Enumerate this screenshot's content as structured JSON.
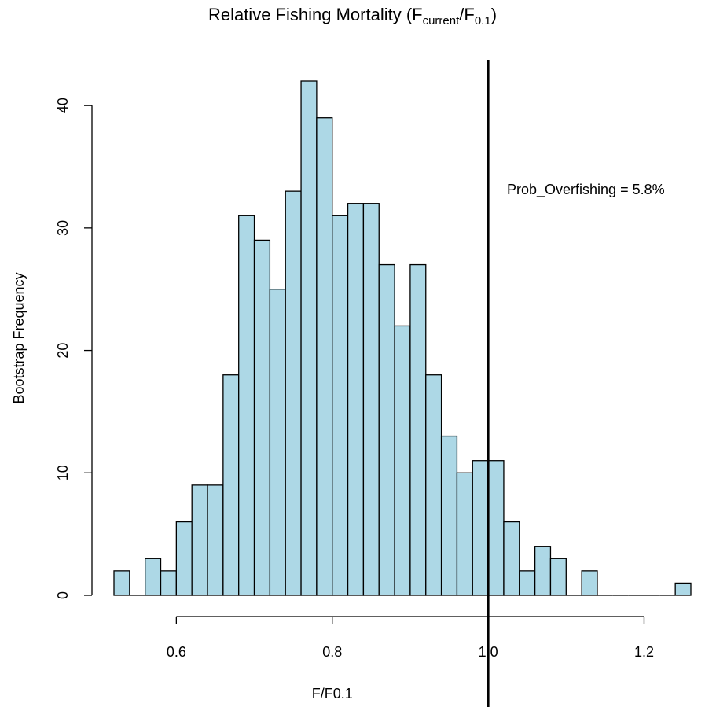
{
  "chart_data": {
    "type": "bar",
    "title": {
      "prefix": "Relative Fishing Mortality (F",
      "sub1": "current",
      "mid": "/F",
      "sub2": "0.1",
      "suffix": ")"
    },
    "xlabel": "F/F0.1",
    "ylabel": "Bootstrap Frequency",
    "bin_width": 0.02,
    "bins": [
      {
        "x0": 0.52,
        "count": 2
      },
      {
        "x0": 0.54,
        "count": 0
      },
      {
        "x0": 0.56,
        "count": 3
      },
      {
        "x0": 0.58,
        "count": 2
      },
      {
        "x0": 0.6,
        "count": 6
      },
      {
        "x0": 0.62,
        "count": 9
      },
      {
        "x0": 0.64,
        "count": 9
      },
      {
        "x0": 0.66,
        "count": 18
      },
      {
        "x0": 0.68,
        "count": 31
      },
      {
        "x0": 0.7,
        "count": 29
      },
      {
        "x0": 0.72,
        "count": 25
      },
      {
        "x0": 0.74,
        "count": 33
      },
      {
        "x0": 0.76,
        "count": 42
      },
      {
        "x0": 0.78,
        "count": 39
      },
      {
        "x0": 0.8,
        "count": 31
      },
      {
        "x0": 0.82,
        "count": 32
      },
      {
        "x0": 0.84,
        "count": 32
      },
      {
        "x0": 0.86,
        "count": 27
      },
      {
        "x0": 0.88,
        "count": 22
      },
      {
        "x0": 0.9,
        "count": 27
      },
      {
        "x0": 0.92,
        "count": 18
      },
      {
        "x0": 0.94,
        "count": 13
      },
      {
        "x0": 0.96,
        "count": 10
      },
      {
        "x0": 0.98,
        "count": 11
      },
      {
        "x0": 1.0,
        "count": 11
      },
      {
        "x0": 1.02,
        "count": 6
      },
      {
        "x0": 1.04,
        "count": 2
      },
      {
        "x0": 1.06,
        "count": 4
      },
      {
        "x0": 1.08,
        "count": 3
      },
      {
        "x0": 1.1,
        "count": 0
      },
      {
        "x0": 1.12,
        "count": 2
      },
      {
        "x0": 1.14,
        "count": 0
      },
      {
        "x0": 1.16,
        "count": 0
      },
      {
        "x0": 1.18,
        "count": 0
      },
      {
        "x0": 1.2,
        "count": 0
      },
      {
        "x0": 1.22,
        "count": 0
      },
      {
        "x0": 1.24,
        "count": 1
      }
    ],
    "x_ticks": [
      0.6,
      0.8,
      1.0,
      1.2
    ],
    "x_tick_labels": [
      "0.6",
      "0.8",
      "1.0",
      "1.2"
    ],
    "y_ticks": [
      0,
      10,
      20,
      30,
      40
    ],
    "y_tick_labels": [
      "0",
      "10",
      "20",
      "30",
      "40"
    ],
    "xlim": [
      0.52,
      1.26
    ],
    "ylim": [
      0,
      42
    ],
    "reference_line": {
      "x": 1.0
    },
    "annotation": "Prob_Overfishing = 5.8%",
    "bar_color": "#ADD8E6",
    "edge_color": "#000000",
    "grid": false
  }
}
